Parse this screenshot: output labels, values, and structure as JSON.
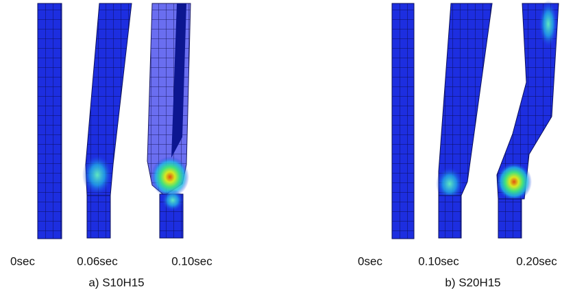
{
  "panels": [
    {
      "caption": "a) S10H15",
      "frames": [
        "0sec",
        "0.06sec",
        "0.10sec"
      ]
    },
    {
      "caption": "b) S20H15",
      "frames": [
        "0sec",
        "0.10sec",
        "0.20sec"
      ]
    }
  ]
}
